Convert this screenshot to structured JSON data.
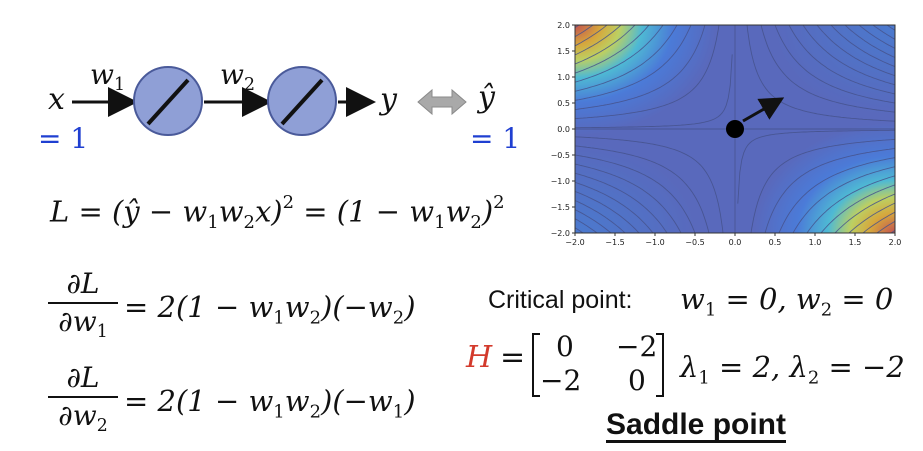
{
  "network": {
    "input": "x",
    "input_value": "= 1",
    "weight1": "w",
    "weight1_sub": "1",
    "weight2": "w",
    "weight2_sub": "2",
    "output": "y",
    "target": "ŷ",
    "target_value": "= 1"
  },
  "loss": {
    "lhs": "L = (ŷ − w",
    "s1": "1",
    "m1": "w",
    "s2": "2",
    "m2": "x)",
    "p1": "2",
    "m3": " = (1 − w",
    "s3": "1",
    "m4": "w",
    "s4": "2",
    "m5": ")",
    "p2": "2"
  },
  "grad1": {
    "num": "∂L",
    "den": "∂w",
    "den_sub": "1",
    "rhs_a": "= 2(1 − w",
    "rhs_s1": "1",
    "rhs_b": "w",
    "rhs_s2": "2",
    "rhs_c": ")(−w",
    "rhs_s3": "2",
    "rhs_d": ")"
  },
  "grad2": {
    "num": "∂L",
    "den": "∂w",
    "den_sub": "2",
    "rhs_a": "= 2(1 − w",
    "rhs_s1": "1",
    "rhs_b": "w",
    "rhs_s2": "2",
    "rhs_c": ")(−w",
    "rhs_s3": "1",
    "rhs_d": ")"
  },
  "critical": {
    "label": "Critical point:",
    "eq_a": "w",
    "eq_s1": "1",
    "eq_b": " = 0, w",
    "eq_s2": "2",
    "eq_c": " = 0"
  },
  "hessian": {
    "symbol": "H",
    "equals": "=",
    "m11": "0",
    "m12": "−2",
    "m21": "−2",
    "m22": "0",
    "eig_a": "λ",
    "eig_s1": "1",
    "eig_b": " = 2, λ",
    "eig_s2": "2",
    "eig_c": " = −2"
  },
  "saddle_label": "Saddle point",
  "colors": {
    "neuron_fill": "#8f9fd6",
    "neuron_stroke": "#4a5a9a",
    "input_value": "#1f3fd1",
    "hessian_symbol": "#d33a2c",
    "plot_background": "#5a6aa8"
  },
  "chart_data": {
    "type": "contour",
    "function": "(1 - w1*w2)^2",
    "x_range": [
      -2.0,
      2.0
    ],
    "y_range": [
      -2.0,
      2.0
    ],
    "x_ticks": [
      "−2.0",
      "−1.5",
      "−1.0",
      "−0.5",
      "0.0",
      "0.5",
      "1.0",
      "1.5",
      "2.0"
    ],
    "y_ticks": [
      "2.0",
      "1.5",
      "1.0",
      "0.5",
      "0.0",
      "−0.5",
      "−1.0",
      "−1.5",
      "−2.0"
    ],
    "critical_point": [
      0,
      0
    ],
    "arrow_to": [
      0.55,
      0.55
    ]
  }
}
